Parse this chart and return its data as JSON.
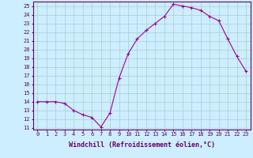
{
  "x": [
    0,
    1,
    2,
    3,
    4,
    5,
    6,
    7,
    8,
    9,
    10,
    11,
    12,
    13,
    14,
    15,
    16,
    17,
    18,
    19,
    20,
    21,
    22,
    23
  ],
  "y": [
    14,
    14,
    14,
    13.8,
    13,
    12.5,
    12.2,
    11.1,
    12.7,
    16.7,
    19.5,
    21.2,
    22.2,
    23.0,
    23.8,
    25.2,
    25.0,
    24.8,
    24.5,
    23.8,
    23.3,
    21.2,
    19.2,
    17.5
  ],
  "line_color": "#990099",
  "marker": "+",
  "marker_size": 3,
  "bg_color": "#cceeff",
  "grid_color": "#aacccc",
  "xlabel": "Windchill (Refroidissement éolien,°C)",
  "xlim": [
    -0.5,
    23.5
  ],
  "ylim": [
    10.8,
    25.5
  ],
  "yticks": [
    11,
    12,
    13,
    14,
    15,
    16,
    17,
    18,
    19,
    20,
    21,
    22,
    23,
    24,
    25
  ],
  "xticks": [
    0,
    1,
    2,
    3,
    4,
    5,
    6,
    7,
    8,
    9,
    10,
    11,
    12,
    13,
    14,
    15,
    16,
    17,
    18,
    19,
    20,
    21,
    22,
    23
  ],
  "tick_fontsize": 5.0,
  "label_fontsize": 6.0,
  "line_color_spine": "#660066",
  "linewidth": 0.8
}
